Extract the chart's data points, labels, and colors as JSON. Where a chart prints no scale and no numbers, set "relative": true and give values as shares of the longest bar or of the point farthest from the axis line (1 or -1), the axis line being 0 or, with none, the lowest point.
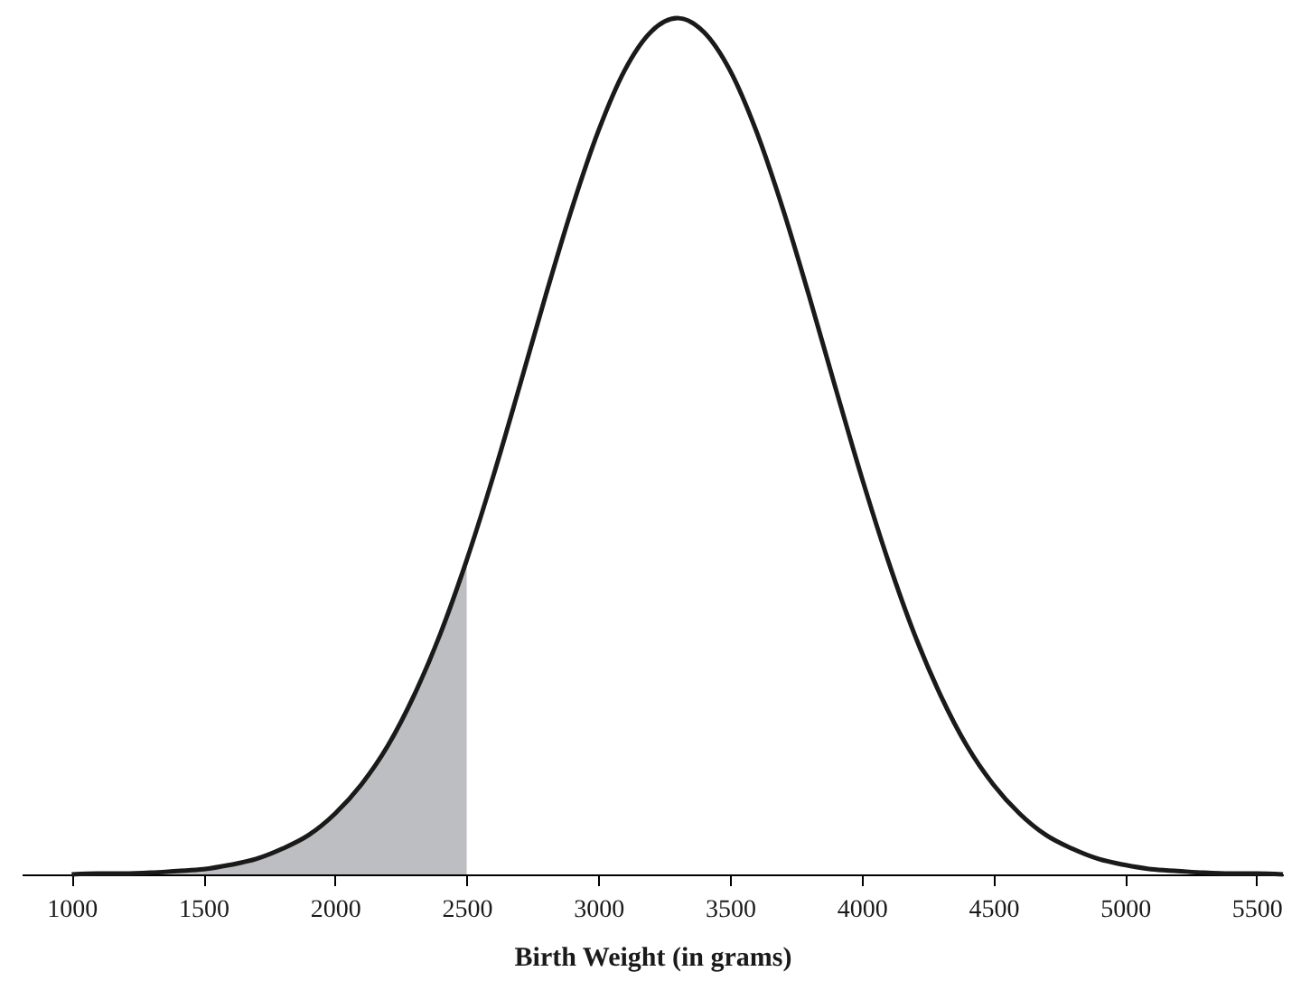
{
  "chart_data": {
    "type": "line",
    "xlabel": "Birth Weight (in grams)",
    "relative": true,
    "xlim": [
      810,
      5600
    ],
    "xticks": [
      1000,
      1500,
      2000,
      2500,
      3000,
      3500,
      4000,
      4500,
      5000,
      5500
    ],
    "grid": false,
    "marker": "none",
    "line_style": "solid",
    "series": [
      {
        "type": "area",
        "color": "#bdbec2",
        "x": [
          1000,
          1100,
          1200,
          1300,
          1400,
          1500,
          1600,
          1700,
          1800,
          1900,
          2000,
          2100,
          2200,
          2300,
          2400,
          2500
        ],
        "values": [
          0,
          0.001,
          0.001,
          0.002,
          0.004,
          0.006,
          0.011,
          0.018,
          0.03,
          0.046,
          0.071,
          0.105,
          0.15,
          0.209,
          0.281,
          0.367
        ]
      },
      {
        "type": "line",
        "color": "#1a1a1a",
        "x": [
          1000,
          1100,
          1200,
          1300,
          1400,
          1500,
          1600,
          1700,
          1800,
          1900,
          2000,
          2100,
          2200,
          2300,
          2400,
          2500,
          2600,
          2700,
          2800,
          2900,
          3000,
          3100,
          3200,
          3300,
          3400,
          3500,
          3600,
          3700,
          3800,
          3900,
          4000,
          4100,
          4200,
          4300,
          4400,
          4500,
          4600,
          4700,
          4800,
          4900,
          5000,
          5100,
          5200,
          5300,
          5400,
          5500,
          5600
        ],
        "values": [
          0,
          0.001,
          0.001,
          0.002,
          0.004,
          0.006,
          0.011,
          0.018,
          0.03,
          0.046,
          0.071,
          0.105,
          0.15,
          0.209,
          0.281,
          0.367,
          0.464,
          0.569,
          0.676,
          0.778,
          0.868,
          0.939,
          0.984,
          1,
          0.984,
          0.939,
          0.868,
          0.778,
          0.676,
          0.569,
          0.464,
          0.367,
          0.281,
          0.209,
          0.15,
          0.105,
          0.071,
          0.046,
          0.03,
          0.018,
          0.011,
          0.006,
          0.004,
          0.002,
          0.001,
          0.001,
          0
        ]
      }
    ]
  }
}
